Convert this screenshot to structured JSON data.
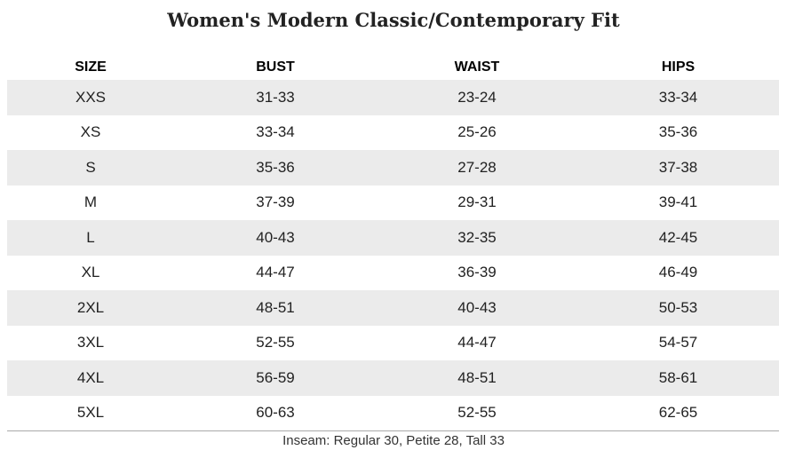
{
  "title": "Women's Modern Classic/Contemporary Fit",
  "table": {
    "header": [
      "SIZE",
      "BUST",
      "WAIST",
      "HIPS"
    ],
    "rows": [
      [
        "XXS",
        "31-33",
        "23-24",
        "33-34"
      ],
      [
        "XS",
        "33-34",
        "25-26",
        "35-36"
      ],
      [
        "S",
        "35-36",
        "27-28",
        "37-38"
      ],
      [
        "M",
        "37-39",
        "29-31",
        "39-41"
      ],
      [
        "L",
        "40-43",
        "32-35",
        "42-45"
      ],
      [
        "XL",
        "44-47",
        "36-39",
        "46-49"
      ],
      [
        "2XL",
        "48-51",
        "40-43",
        "50-53"
      ],
      [
        "3XL",
        "52-55",
        "44-47",
        "54-57"
      ],
      [
        "4XL",
        "56-59",
        "48-51",
        "58-61"
      ],
      [
        "5XL",
        "60-63",
        "52-55",
        "62-65"
      ]
    ]
  },
  "footnote": "Inseam: Regular 30, Petite 28, Tall 33"
}
